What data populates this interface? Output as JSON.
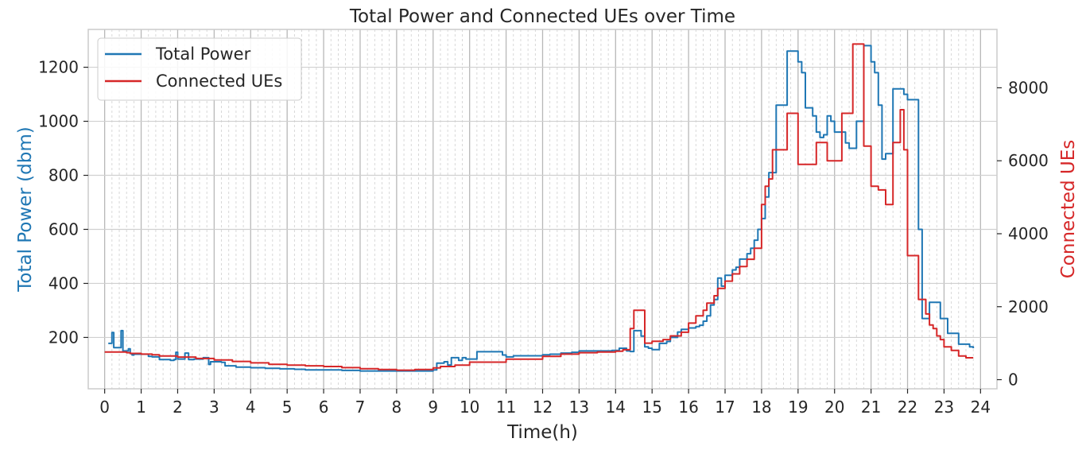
{
  "chart_data": {
    "type": "line",
    "title": "Total Power and Connected UEs over Time",
    "xlabel": "Time(h)",
    "ylabel_left": "Total Power (dbm)",
    "ylabel_right": "Connected UEs",
    "xlim": [
      -0.45,
      24.45
    ],
    "ylim_left": [
      10,
      1340
    ],
    "ylim_right": [
      -250,
      9600
    ],
    "x_ticks": [
      0,
      1,
      2,
      3,
      4,
      5,
      6,
      7,
      8,
      9,
      10,
      11,
      12,
      13,
      14,
      15,
      16,
      17,
      18,
      19,
      20,
      21,
      22,
      23,
      24
    ],
    "y_ticks_left": [
      200,
      400,
      600,
      800,
      1000,
      1200
    ],
    "y_ticks_right": [
      0,
      2000,
      4000,
      6000,
      8000
    ],
    "grid": true,
    "legend_position": "top-left",
    "colors": {
      "total_power": "#1f77b4",
      "connected_ues": "#d62728",
      "text": "#262626"
    },
    "series": [
      {
        "name": "Total Power",
        "axis": "left",
        "color": "#1f77b4",
        "x": [
          0.1,
          0.15,
          0.2,
          0.25,
          0.3,
          0.45,
          0.5,
          0.55,
          0.65,
          0.7,
          0.75,
          0.8,
          0.9,
          1.2,
          1.3,
          1.5,
          1.8,
          1.9,
          1.95,
          2.0,
          2.15,
          2.2,
          2.3,
          2.45,
          2.7,
          2.8,
          2.85,
          2.9,
          3.2,
          3.3,
          3.6,
          4.0,
          4.4,
          4.8,
          5.2,
          5.5,
          6.0,
          6.5,
          7.0,
          7.5,
          8.0,
          8.5,
          9.0,
          9.1,
          9.3,
          9.4,
          9.5,
          9.6,
          9.7,
          9.8,
          9.9,
          10.2,
          10.8,
          10.9,
          11.0,
          11.2,
          11.6,
          12.0,
          12.2,
          12.5,
          12.8,
          13.0,
          13.3,
          13.5,
          13.9,
          14.0,
          14.1,
          14.2,
          14.3,
          14.4,
          14.5,
          14.6,
          14.7,
          14.8,
          14.9,
          15.0,
          15.2,
          15.4,
          15.5,
          15.7,
          15.8,
          16.0,
          16.2,
          16.3,
          16.4,
          16.5,
          16.6,
          16.7,
          16.8,
          16.9,
          17.0,
          17.1,
          17.2,
          17.3,
          17.4,
          17.6,
          17.7,
          17.8,
          17.9,
          18.0,
          18.1,
          18.2,
          18.3,
          18.4,
          18.5,
          18.6,
          18.7,
          18.8,
          18.9,
          19.0,
          19.1,
          19.2,
          19.3,
          19.4,
          19.5,
          19.6,
          19.7,
          19.8,
          19.9,
          20.0,
          20.1,
          20.2,
          20.3,
          20.4,
          20.5,
          20.6,
          20.7,
          20.8,
          20.9,
          21.0,
          21.1,
          21.2,
          21.3,
          21.4,
          21.5,
          21.6,
          21.7,
          21.8,
          21.9,
          22.0,
          22.1,
          22.2,
          22.3,
          22.4,
          22.5,
          22.6,
          22.7,
          22.8,
          22.9,
          23.0,
          23.1,
          23.2,
          23.3,
          23.4,
          23.5,
          23.6,
          23.7,
          23.8
        ],
        "y": [
          178,
          178,
          218,
          162,
          162,
          225,
          150,
          150,
          158,
          140,
          135,
          138,
          138,
          130,
          128,
          118,
          115,
          118,
          145,
          120,
          120,
          142,
          118,
          120,
          125,
          125,
          100,
          110,
          108,
          95,
          90,
          88,
          86,
          84,
          82,
          80,
          80,
          78,
          76,
          76,
          76,
          76,
          80,
          105,
          110,
          98,
          125,
          125,
          115,
          125,
          120,
          147,
          147,
          135,
          128,
          132,
          132,
          136,
          138,
          142,
          145,
          150,
          150,
          150,
          152,
          152,
          160,
          160,
          150,
          148,
          225,
          225,
          205,
          165,
          160,
          155,
          178,
          185,
          200,
          220,
          230,
          235,
          240,
          245,
          260,
          280,
          320,
          340,
          420,
          390,
          430,
          430,
          450,
          460,
          490,
          510,
          530,
          560,
          600,
          640,
          720,
          810,
          810,
          1060,
          1060,
          1060,
          1260,
          1260,
          1260,
          1220,
          1180,
          1050,
          1050,
          1020,
          960,
          940,
          950,
          1020,
          1000,
          960,
          960,
          960,
          920,
          900,
          900,
          1000,
          1000,
          1280,
          1280,
          1220,
          1180,
          1060,
          860,
          880,
          880,
          1120,
          1120,
          1120,
          1100,
          1080,
          1080,
          1080,
          600,
          270,
          270,
          330,
          330,
          330,
          270,
          270,
          215,
          215,
          215,
          175,
          175,
          175,
          165,
          160
        ],
        "value_labels": []
      },
      {
        "name": "Connected UEs",
        "axis": "right",
        "color": "#d62728",
        "x": [
          0.0,
          0.6,
          0.7,
          1.0,
          1.3,
          1.5,
          2.0,
          2.5,
          3.0,
          3.5,
          4.0,
          4.5,
          5.0,
          5.5,
          6.0,
          6.5,
          7.0,
          7.5,
          8.0,
          8.5,
          9.0,
          9.2,
          9.6,
          10.0,
          11.0,
          12.0,
          12.5,
          13.0,
          13.5,
          14.0,
          14.2,
          14.4,
          14.5,
          14.6,
          14.8,
          15.0,
          15.3,
          15.5,
          15.8,
          16.0,
          16.2,
          16.4,
          16.5,
          16.7,
          16.8,
          17.0,
          17.2,
          17.4,
          17.6,
          17.8,
          18.0,
          18.1,
          18.2,
          18.3,
          18.5,
          18.7,
          18.8,
          19.0,
          19.1,
          19.3,
          19.5,
          19.7,
          19.8,
          20.0,
          20.2,
          20.4,
          20.5,
          20.6,
          20.8,
          20.9,
          21.0,
          21.2,
          21.4,
          21.6,
          21.7,
          21.8,
          21.9,
          22.0,
          22.2,
          22.3,
          22.4,
          22.5,
          22.6,
          22.7,
          22.8,
          22.9,
          23.0,
          23.2,
          23.4,
          23.6,
          23.8
        ],
        "y": [
          760,
          740,
          720,
          700,
          680,
          650,
          620,
          580,
          540,
          500,
          460,
          420,
          400,
          380,
          360,
          330,
          300,
          280,
          260,
          280,
          320,
          360,
          400,
          480,
          560,
          640,
          700,
          740,
          760,
          780,
          820,
          1400,
          1900,
          1900,
          1000,
          1050,
          1100,
          1200,
          1300,
          1550,
          1750,
          1900,
          2100,
          2300,
          2500,
          2700,
          2900,
          3100,
          3300,
          3600,
          4800,
          5300,
          5500,
          6300,
          6300,
          7300,
          7300,
          5900,
          5900,
          5900,
          6500,
          6500,
          6000,
          6000,
          7300,
          7300,
          9200,
          9200,
          6400,
          6400,
          5300,
          5200,
          4800,
          6500,
          6500,
          7400,
          6300,
          3400,
          3400,
          2200,
          2200,
          1800,
          1500,
          1400,
          1200,
          1100,
          900,
          800,
          650,
          600,
          600
        ],
        "value_labels": []
      }
    ]
  }
}
